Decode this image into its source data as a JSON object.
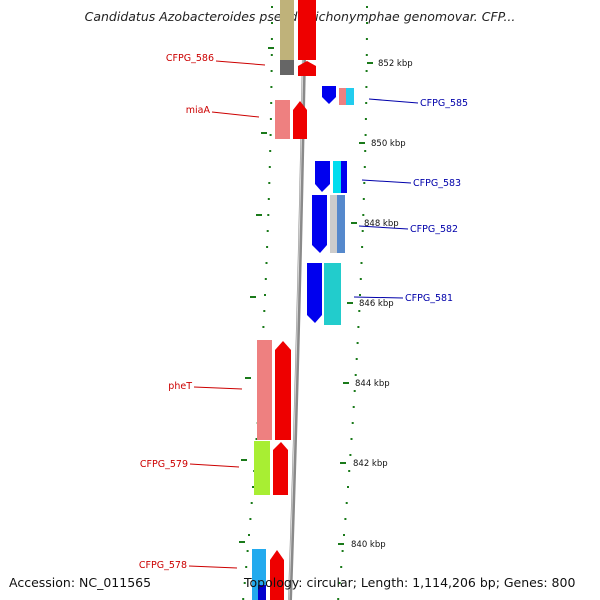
{
  "title": "Candidatus Azobacteroides pseudotrichonymphae genomovar. CFP...",
  "footer": {
    "accession": "Accession: NC_011565",
    "topology": "Topology: circular; Length: 1,114,206 bp; Genes: 800"
  },
  "colors": {
    "backbone": "#8a8a8a",
    "tick": "#1a7a1a",
    "label_left": "#cc0000",
    "label_right": "#0000aa"
  },
  "scale_labels": [
    "852 kbp",
    "850 kbp",
    "848 kbp",
    "846 kbp",
    "844 kbp",
    "842 kbp",
    "840 kbp"
  ],
  "genes_left": [
    "CFPG_586",
    "miaA",
    "pheT",
    "CFPG_579",
    "CFPG_578"
  ],
  "genes_right": [
    "CFPG_585",
    "CFPG_583",
    "CFPG_582",
    "CFPG_581"
  ]
}
